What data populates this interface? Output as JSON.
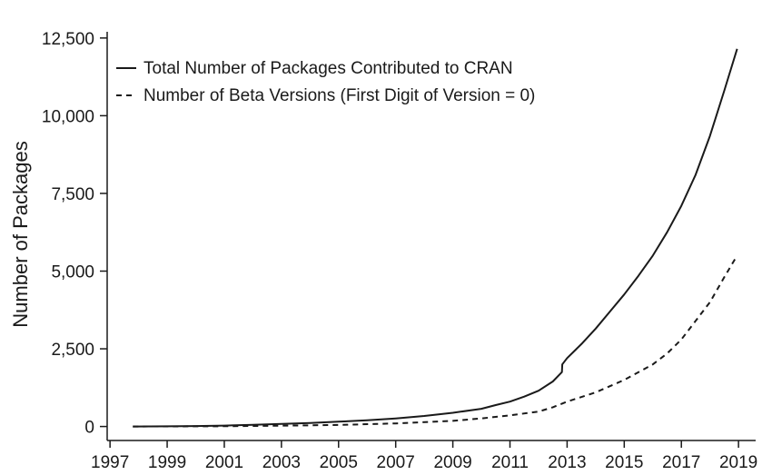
{
  "chart_data": {
    "type": "line",
    "title": "",
    "xlabel": "",
    "ylabel": "Number of Packages",
    "xlim": [
      1996.9,
      2019.6
    ],
    "ylim": [
      -450,
      12700
    ],
    "x_ticks": [
      "1997",
      "1999",
      "2001",
      "2003",
      "2005",
      "2007",
      "2009",
      "2011",
      "2013",
      "2015",
      "2017",
      "2019"
    ],
    "y_ticks": [
      "0",
      "2,500",
      "5,000",
      "7,500",
      "10,000",
      "12,500"
    ],
    "y_tick_values": [
      0,
      2500,
      5000,
      7500,
      10000,
      12500
    ],
    "grid": false,
    "legend_position": "top-left",
    "series": [
      {
        "name": "Total Number of Packages Contributed to CRAN",
        "style": "solid",
        "x": [
          1997.8,
          1999,
          2000,
          2001,
          2002,
          2003,
          2004,
          2005,
          2006,
          2007,
          2008,
          2009,
          2010,
          2010.5,
          2011,
          2011.5,
          2012,
          2012.5,
          2012.82,
          2012.83,
          2013,
          2013.5,
          2014,
          2014.5,
          2015,
          2015.5,
          2016,
          2016.5,
          2017,
          2017.5,
          2018,
          2018.5,
          2018.95
        ],
        "y": [
          0,
          5,
          15,
          30,
          55,
          85,
          115,
          155,
          200,
          260,
          340,
          440,
          570,
          690,
          800,
          960,
          1150,
          1450,
          1750,
          2000,
          2200,
          2650,
          3150,
          3700,
          4250,
          4850,
          5500,
          6250,
          7100,
          8100,
          9350,
          10800,
          12150
        ]
      },
      {
        "name": "Number of Beta Versions (First Digit of Version = 0)",
        "style": "dashed",
        "x": [
          1997.8,
          1999,
          2001,
          2003,
          2005,
          2007,
          2009,
          2010,
          2011,
          2012,
          2012.5,
          2013,
          2014,
          2015,
          2016,
          2016.5,
          2017,
          2017.5,
          2018,
          2018.5,
          2018.95
        ],
        "y": [
          0,
          3,
          10,
          25,
          50,
          100,
          180,
          260,
          360,
          480,
          620,
          800,
          1100,
          1500,
          2000,
          2350,
          2800,
          3400,
          4000,
          4800,
          5500
        ]
      }
    ]
  }
}
